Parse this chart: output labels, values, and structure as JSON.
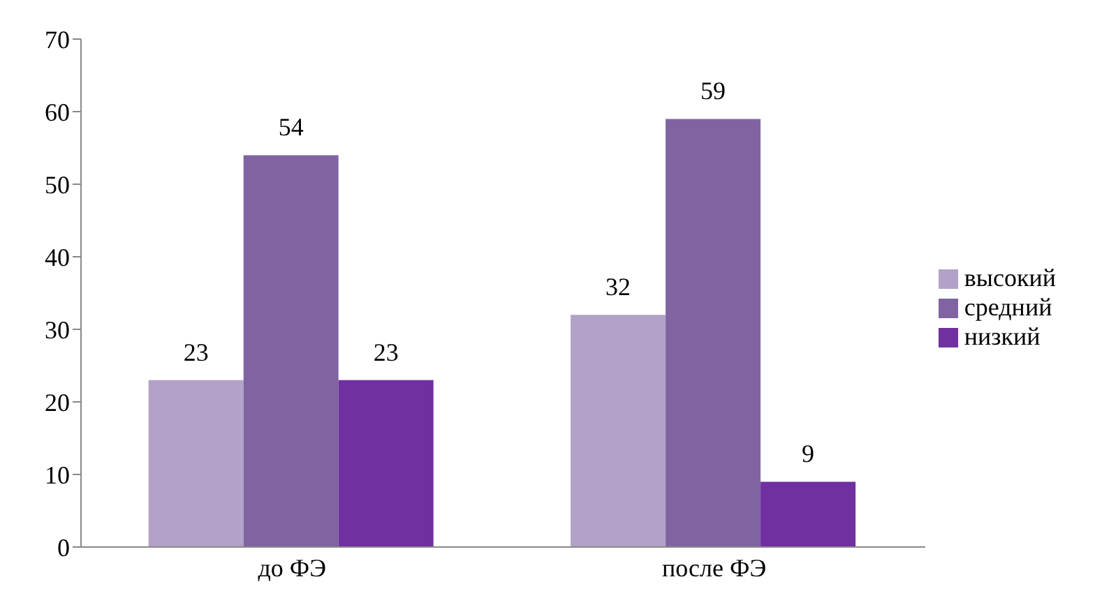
{
  "chart_data": {
    "type": "bar",
    "categories": [
      "до ФЭ",
      "после ФЭ"
    ],
    "series": [
      {
        "name": "высокий",
        "color": "#b3a2c7",
        "values": [
          23,
          32
        ]
      },
      {
        "name": "средний",
        "color": "#8064a2",
        "values": [
          54,
          59
        ]
      },
      {
        "name": "низкий",
        "color": "#7030a0",
        "values": [
          23,
          9
        ]
      }
    ],
    "ylim": [
      0,
      70
    ],
    "yticks": [
      0,
      10,
      20,
      30,
      40,
      50,
      60,
      70
    ],
    "grid": false,
    "legend": "right",
    "data_labels": true
  }
}
